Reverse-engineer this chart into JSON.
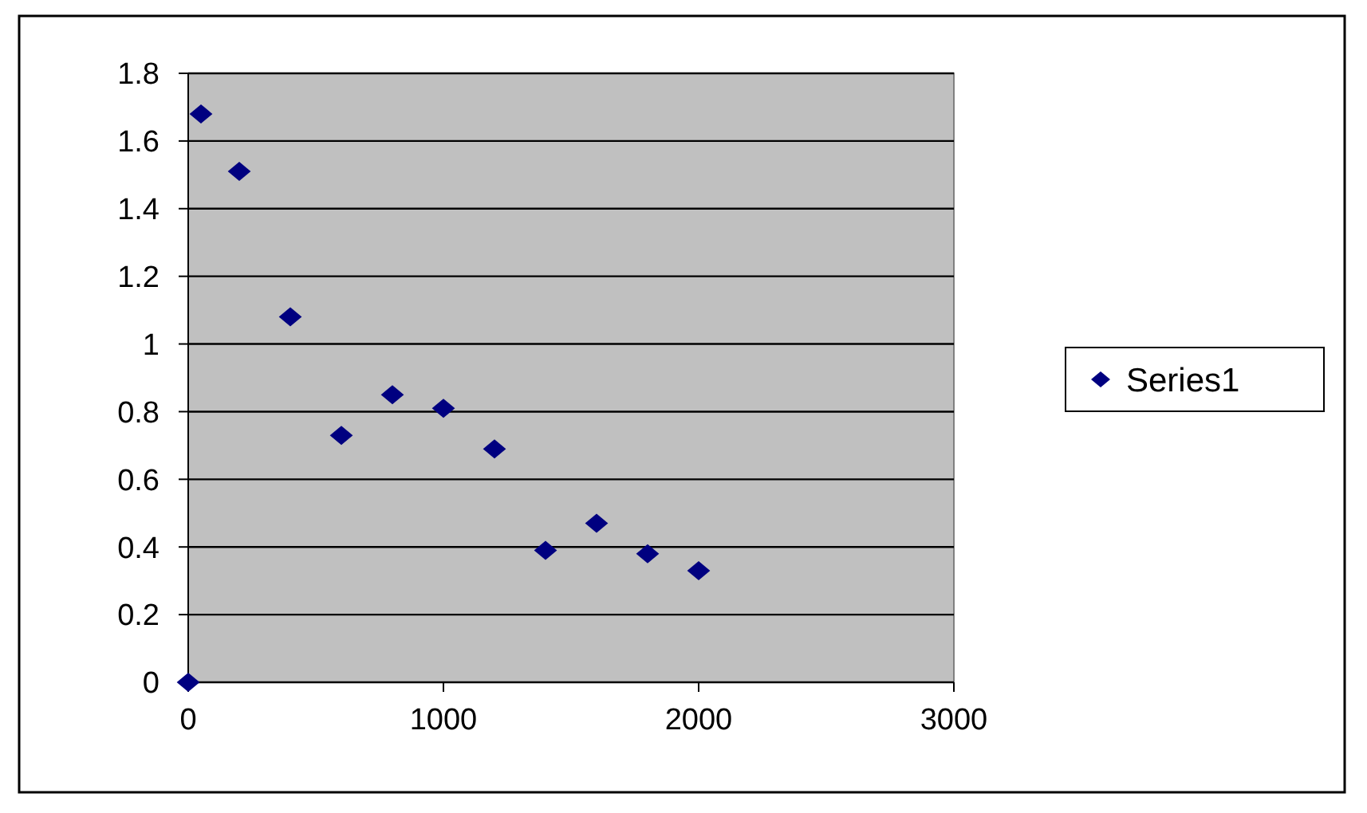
{
  "chart_data": {
    "type": "scatter",
    "x": [
      0,
      50,
      200,
      400,
      600,
      800,
      1000,
      1200,
      1400,
      1600,
      1800,
      2000
    ],
    "series": [
      {
        "name": "Series1",
        "color": "#000080",
        "values": [
          0,
          1.68,
          1.51,
          1.08,
          0.73,
          0.85,
          0.81,
          0.69,
          0.39,
          0.47,
          0.38,
          0.33
        ]
      }
    ],
    "xlim": [
      0,
      3000
    ],
    "xticks": [
      0,
      1000,
      2000,
      3000
    ],
    "ylim": [
      0,
      1.8
    ],
    "yticks": [
      0,
      0.2,
      0.4,
      0.6,
      0.8,
      1,
      1.2,
      1.4,
      1.6,
      1.8
    ],
    "grid": "y",
    "legend": "right",
    "marker": "diamond"
  }
}
